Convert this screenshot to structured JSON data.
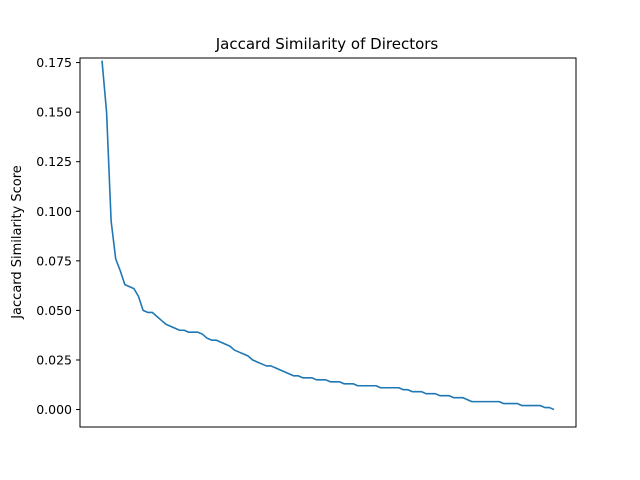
{
  "chart_data": {
    "type": "line",
    "title": "Jaccard Similarity of Directors",
    "xlabel": "",
    "ylabel": "Jaccard Similarity Score",
    "ylim": [
      -0.0088,
      0.1773
    ],
    "yticks": [
      0.0,
      0.025,
      0.05,
      0.075,
      0.1,
      0.125,
      0.15,
      0.175
    ],
    "ytick_labels": [
      "0.000",
      "0.025",
      "0.050",
      "0.075",
      "0.100",
      "0.125",
      "0.150",
      "0.175"
    ],
    "xticks_visible": false,
    "grid": false,
    "color": "#1f77b4",
    "series": [
      {
        "x": [
          0,
          1,
          2,
          3,
          4,
          5,
          6,
          7,
          8,
          9,
          10,
          11,
          12,
          13,
          14,
          15,
          16,
          17,
          18,
          19,
          20,
          21,
          22,
          23,
          24,
          25,
          26,
          27,
          28,
          29,
          30,
          31,
          32,
          33,
          34,
          35,
          36,
          37,
          38,
          39,
          40,
          41,
          42,
          43,
          44,
          45,
          46,
          47,
          48,
          49,
          50,
          51,
          52,
          53,
          54,
          55,
          56,
          57,
          58,
          59,
          60,
          61,
          62,
          63,
          64,
          65,
          66,
          67,
          68,
          69,
          70,
          71,
          72,
          73,
          74,
          75,
          76,
          77,
          78,
          79,
          80,
          81,
          82,
          83,
          84,
          85,
          86,
          87,
          88,
          89,
          90,
          91,
          92,
          93,
          94,
          95,
          96,
          97,
          98,
          99
        ],
        "y": [
          0.176,
          0.15,
          0.095,
          0.076,
          0.07,
          0.063,
          0.062,
          0.061,
          0.057,
          0.05,
          0.049,
          0.049,
          0.047,
          0.045,
          0.043,
          0.042,
          0.041,
          0.04,
          0.04,
          0.039,
          0.039,
          0.039,
          0.038,
          0.036,
          0.035,
          0.035,
          0.034,
          0.033,
          0.032,
          0.03,
          0.029,
          0.028,
          0.027,
          0.025,
          0.024,
          0.023,
          0.022,
          0.022,
          0.021,
          0.02,
          0.019,
          0.018,
          0.017,
          0.017,
          0.016,
          0.016,
          0.016,
          0.015,
          0.015,
          0.015,
          0.014,
          0.014,
          0.014,
          0.013,
          0.013,
          0.013,
          0.012,
          0.012,
          0.012,
          0.012,
          0.012,
          0.011,
          0.011,
          0.011,
          0.011,
          0.011,
          0.01,
          0.01,
          0.009,
          0.009,
          0.009,
          0.008,
          0.008,
          0.008,
          0.007,
          0.007,
          0.007,
          0.006,
          0.006,
          0.006,
          0.005,
          0.004,
          0.004,
          0.004,
          0.004,
          0.004,
          0.004,
          0.004,
          0.003,
          0.003,
          0.003,
          0.003,
          0.002,
          0.002,
          0.002,
          0.002,
          0.002,
          0.001,
          0.001,
          0.0
        ]
      }
    ]
  }
}
